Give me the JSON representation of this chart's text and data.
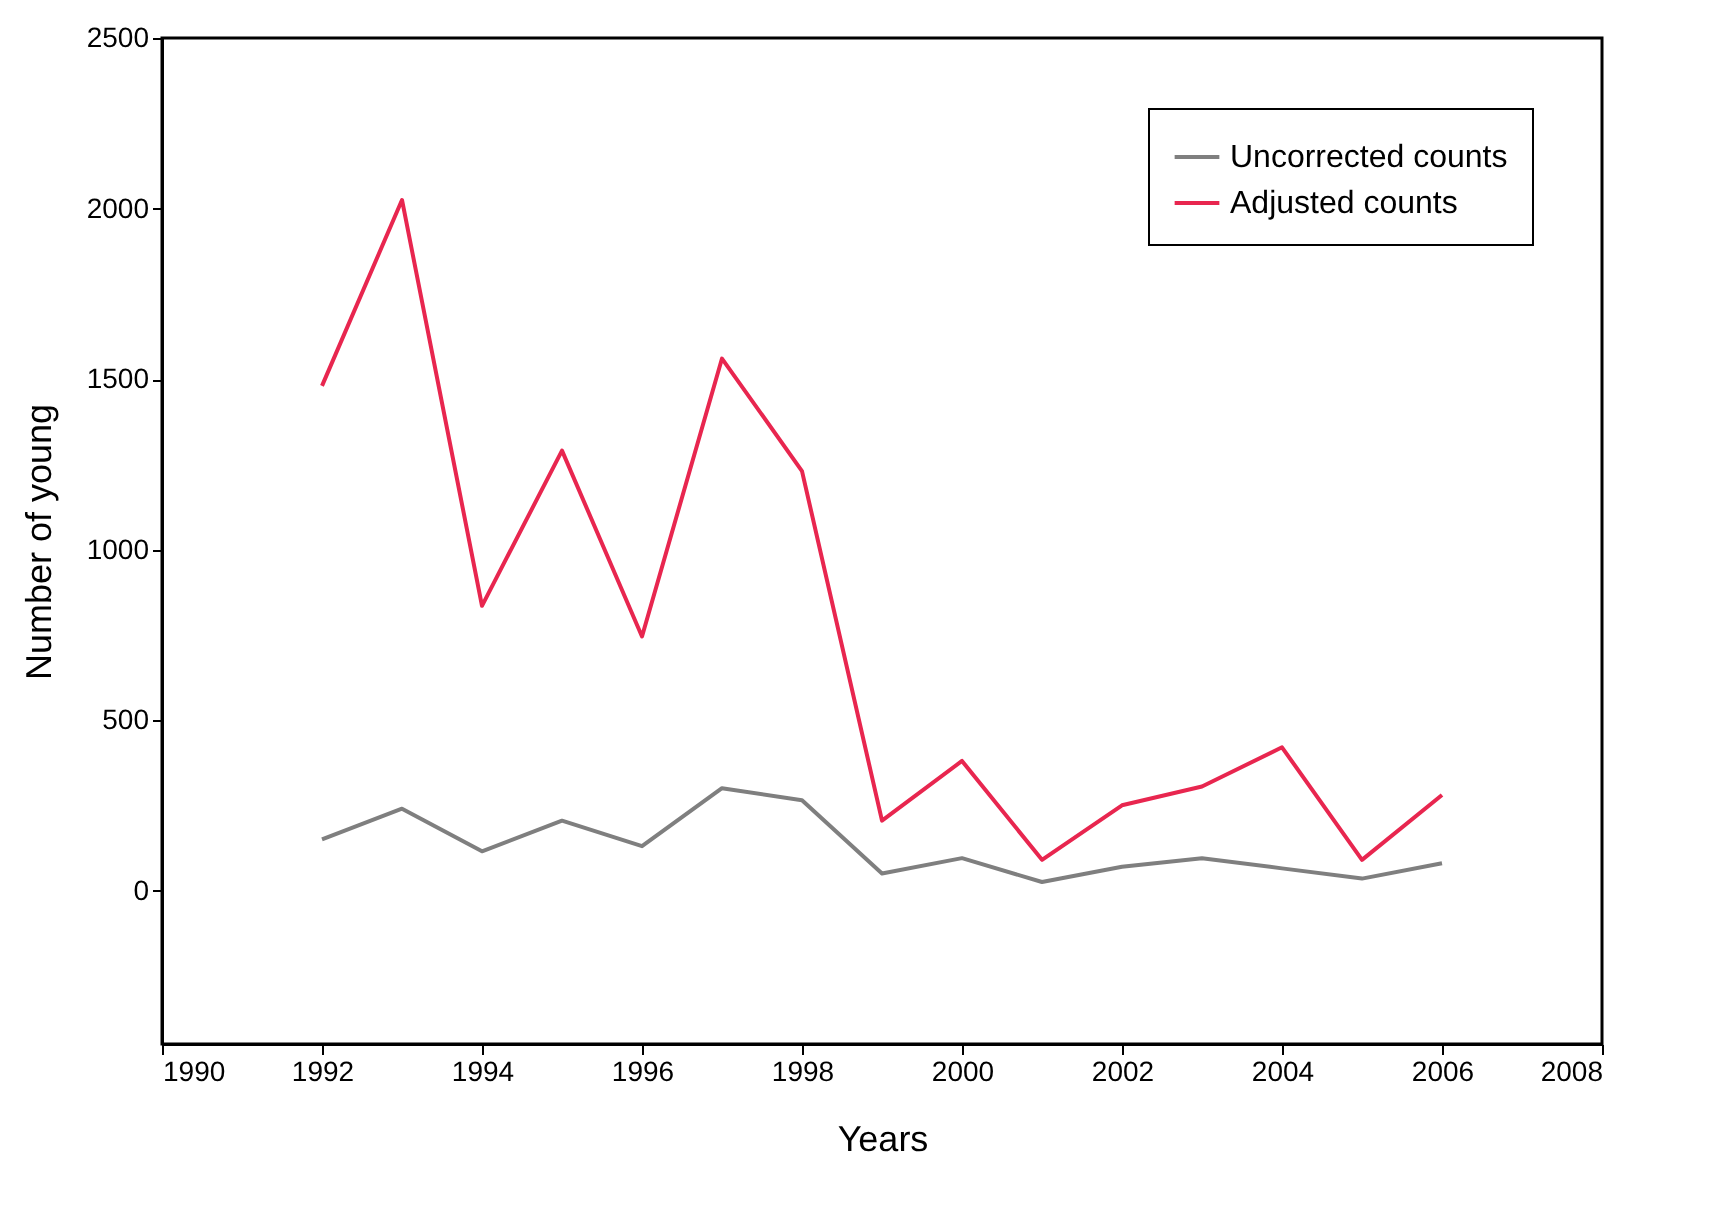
{
  "chart_data": {
    "type": "line",
    "xlabel": "Years",
    "ylabel": "Number of young",
    "x": [
      1992,
      1993,
      1994,
      1995,
      1996,
      1997,
      1998,
      1999,
      2000,
      2001,
      2002,
      2003,
      2004,
      2005,
      2006
    ],
    "series": [
      {
        "name": "Uncorrected counts",
        "color": "#7f7f7f",
        "values": [
          150,
          240,
          115,
          205,
          130,
          300,
          265,
          50,
          95,
          25,
          70,
          95,
          65,
          35,
          80
        ]
      },
      {
        "name": "Adjusted counts",
        "color": "#e8264f",
        "values": [
          1480,
          2025,
          835,
          1290,
          745,
          1560,
          1230,
          205,
          380,
          90,
          250,
          305,
          420,
          90,
          280
        ]
      }
    ],
    "xlim": [
      1990,
      2008
    ],
    "xticks": [
      1990,
      1992,
      1994,
      1996,
      1998,
      2000,
      2002,
      2004,
      2006,
      2008
    ],
    "ylim": [
      -450,
      2500
    ],
    "yticks": [
      0,
      500,
      1000,
      1500,
      2000,
      2500
    ],
    "grid": false,
    "legend": "top right",
    "marker": "none",
    "line_style": "solid"
  }
}
